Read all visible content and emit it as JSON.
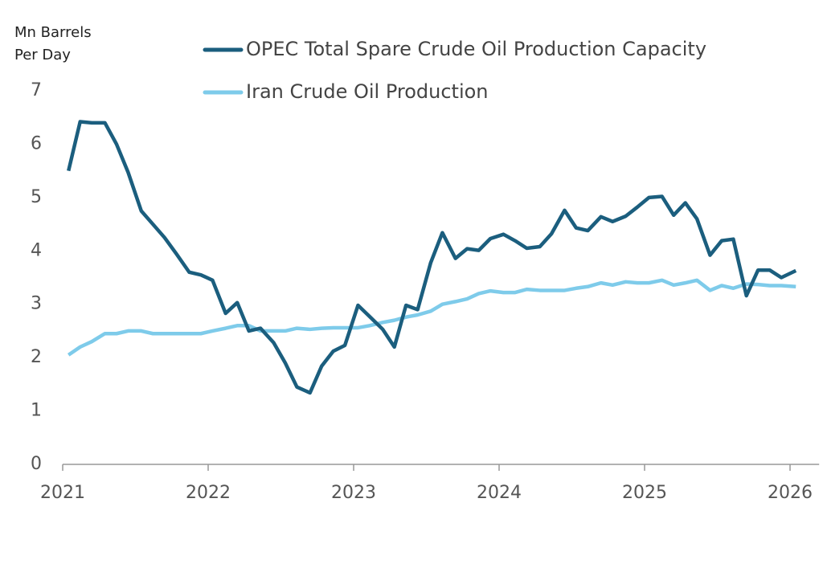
{
  "chart_data": {
    "type": "line",
    "y_label": "Mn Barrels Per Day",
    "x": [
      2021.04,
      2021.12,
      2021.2,
      2021.29,
      2021.37,
      2021.45,
      2021.54,
      2021.62,
      2021.7,
      2021.78,
      2021.87,
      2021.95,
      2022.03,
      2022.12,
      2022.2,
      2022.28,
      2022.36,
      2022.45,
      2022.53,
      2022.61,
      2022.7,
      2022.78,
      2022.86,
      2022.94,
      2023.03,
      2023.11,
      2023.2,
      2023.28,
      2023.36,
      2023.44,
      2023.53,
      2023.61,
      2023.7,
      2023.78,
      2023.86,
      2023.94,
      2024.03,
      2024.11,
      2024.19,
      2024.28,
      2024.36,
      2024.45,
      2024.53,
      2024.61,
      2024.7,
      2024.78,
      2024.87,
      2024.95,
      2025.03,
      2025.12,
      2025.2,
      2025.28,
      2025.36,
      2025.45,
      2025.53,
      2025.61,
      2025.7,
      2025.78,
      2025.86,
      2025.94,
      2026.04
    ],
    "series": [
      {
        "name": "OPEC Total Spare Crude Oil Production Capacity",
        "color": "#1b5e7e",
        "values": [
          5.5,
          6.42,
          6.4,
          6.4,
          6.0,
          5.47,
          4.75,
          4.5,
          4.25,
          3.95,
          3.6,
          3.55,
          3.45,
          2.83,
          3.03,
          2.5,
          2.55,
          2.28,
          1.9,
          1.45,
          1.34,
          1.84,
          2.12,
          2.23,
          2.98,
          2.77,
          2.53,
          2.2,
          2.98,
          2.9,
          3.78,
          4.34,
          3.86,
          4.04,
          4.01,
          4.23,
          4.31,
          4.19,
          4.05,
          4.08,
          4.32,
          4.76,
          4.43,
          4.38,
          4.64,
          4.55,
          4.65,
          4.82,
          5.0,
          5.02,
          4.67,
          4.9,
          4.6,
          3.92,
          4.19,
          4.22,
          3.16,
          3.64,
          3.64,
          3.5,
          3.63
        ]
      },
      {
        "name": "Iran Crude Oil Production",
        "color": "#7ecbea",
        "values": [
          2.05,
          2.2,
          2.3,
          2.45,
          2.45,
          2.5,
          2.5,
          2.45,
          2.45,
          2.45,
          2.45,
          2.45,
          2.5,
          2.55,
          2.6,
          2.6,
          2.5,
          2.5,
          2.5,
          2.55,
          2.53,
          2.55,
          2.56,
          2.56,
          2.56,
          2.6,
          2.66,
          2.7,
          2.76,
          2.8,
          2.87,
          3.0,
          3.05,
          3.1,
          3.2,
          3.25,
          3.22,
          3.22,
          3.28,
          3.26,
          3.26,
          3.26,
          3.3,
          3.33,
          3.4,
          3.36,
          3.42,
          3.4,
          3.4,
          3.45,
          3.36,
          3.4,
          3.45,
          3.26,
          3.35,
          3.3,
          3.38,
          3.37,
          3.35,
          3.35,
          3.33
        ]
      }
    ],
    "xlim": [
      2021,
      2026.2
    ],
    "xticks": [
      2021,
      2022,
      2023,
      2024,
      2025,
      2026
    ],
    "ylim": [
      0,
      7
    ],
    "yticks": [
      0,
      1,
      2,
      3,
      4,
      5,
      6,
      7
    ],
    "grid": false,
    "legend": "top"
  }
}
